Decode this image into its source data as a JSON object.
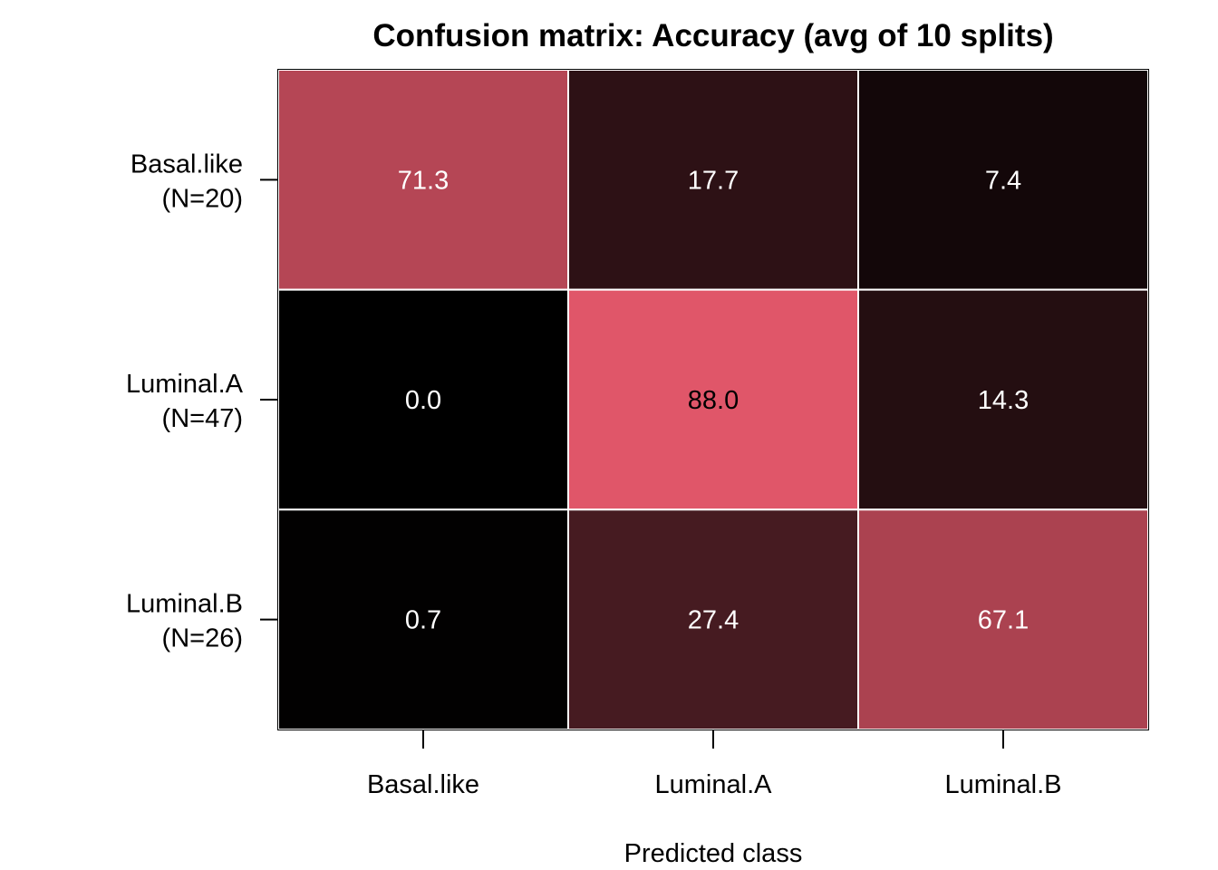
{
  "chart_data": {
    "type": "heatmap",
    "title": "Confusion matrix: Accuracy (avg of 10 splits)",
    "xlabel": "Predicted class",
    "ylabel": "",
    "x_categories": [
      "Basal.like",
      "Luminal.A",
      "Luminal.B"
    ],
    "y_categories": [
      {
        "name": "Basal.like",
        "count_label": "(N=20)"
      },
      {
        "name": "Luminal.A",
        "count_label": "(N=47)"
      },
      {
        "name": "Luminal.B",
        "count_label": "(N=26)"
      }
    ],
    "values": [
      [
        71.3,
        17.7,
        7.4
      ],
      [
        0.0,
        88.0,
        14.3
      ],
      [
        0.7,
        27.4,
        67.1
      ]
    ],
    "value_labels": [
      [
        "71.3",
        "17.7",
        "7.4"
      ],
      [
        "0.0",
        "88.0",
        "14.3"
      ],
      [
        "0.7",
        "27.4",
        "67.1"
      ]
    ],
    "color_scale": {
      "low": "#000000",
      "high": "#e05669"
    },
    "text_colors": {
      "light": "#ffffff",
      "dark": "#000000"
    },
    "grid_line_color": "#ffffff",
    "legend": "none"
  }
}
